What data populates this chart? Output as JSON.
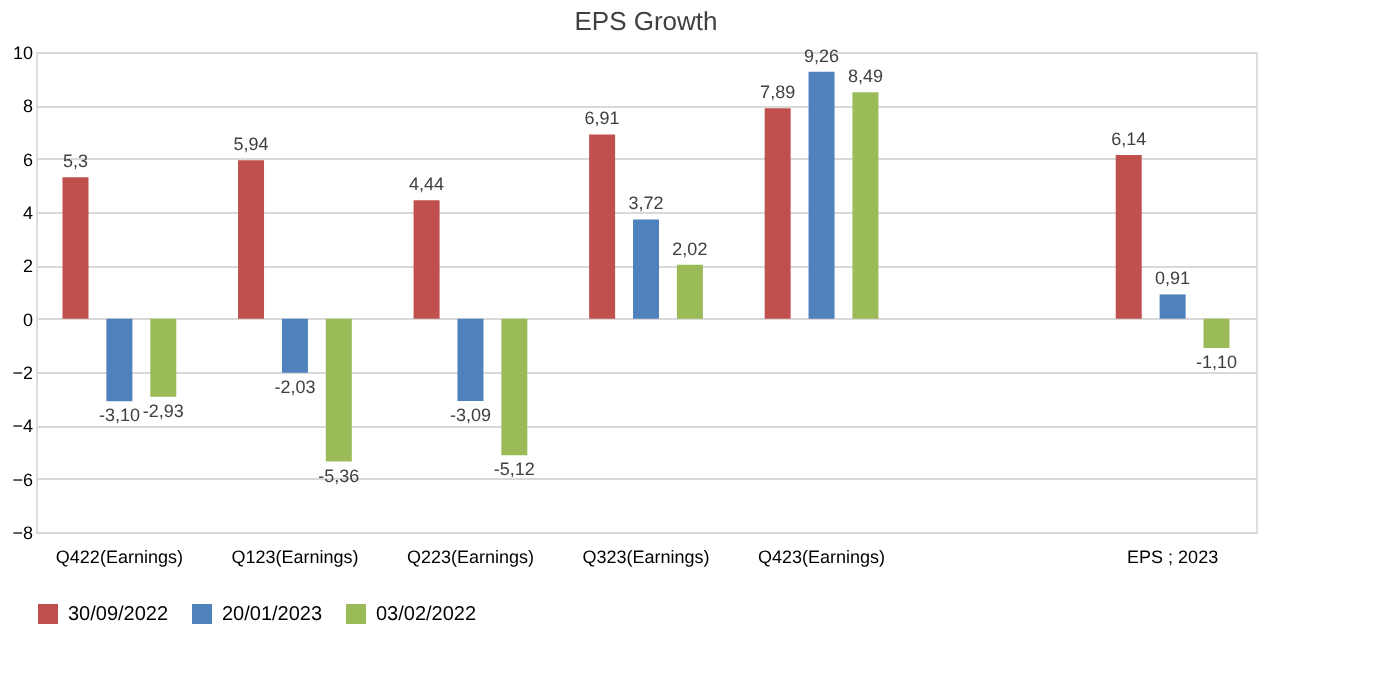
{
  "chart_data": {
    "type": "bar",
    "title": "EPS Growth",
    "categories": [
      "Q422(Earnings)",
      "Q123(Earnings)",
      "Q223(Earnings)",
      "Q323(Earnings)",
      "Q423(Earnings)",
      null,
      "EPS ; 2023"
    ],
    "series": [
      {
        "name": "30/09/2022",
        "color": "#c0504d",
        "values": [
          5.3,
          5.94,
          4.44,
          6.91,
          7.89,
          null,
          6.14
        ],
        "value_labels": [
          "5,3",
          "5,94",
          "4,44",
          "6,91",
          "7,89",
          null,
          "6,14"
        ]
      },
      {
        "name": "20/01/2023",
        "color": "#4f81bd",
        "values": [
          -3.1,
          -2.03,
          -3.09,
          3.72,
          9.26,
          null,
          0.91
        ],
        "value_labels": [
          "-3,10",
          "-2,03",
          "-3,09",
          "3,72",
          "9,26",
          null,
          "0,91"
        ]
      },
      {
        "name": "03/02/2022",
        "color": "#9bbb59",
        "values": [
          -2.93,
          -5.36,
          -5.12,
          2.02,
          8.49,
          null,
          -1.1
        ],
        "value_labels": [
          "-2,93",
          "-5,36",
          "-5,12",
          "2,02",
          "8,49",
          null,
          "-1,10"
        ]
      }
    ],
    "ylim": [
      -8,
      10
    ],
    "yticks": [
      -8,
      -6,
      -4,
      -2,
      0,
      2,
      4,
      6,
      8,
      10
    ],
    "grid": "y",
    "legend": "bottom"
  }
}
